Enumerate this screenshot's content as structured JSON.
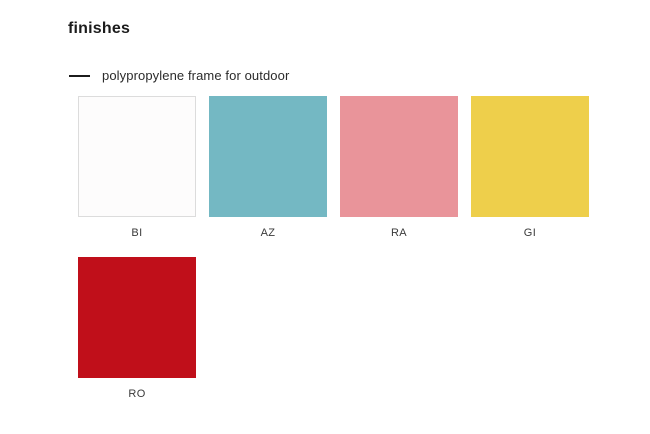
{
  "page": {
    "title": "finishes",
    "legend": {
      "label": "polypropylene frame for outdoor",
      "line_color": "#1c1c1c"
    },
    "swatches": [
      {
        "code": "BI",
        "color": "#fdfcfc",
        "border": "#dcdcdc"
      },
      {
        "code": "AZ",
        "color": "#74b8c3"
      },
      {
        "code": "RA",
        "color": "#e9949a"
      },
      {
        "code": "GI",
        "color": "#eecf4b"
      },
      {
        "code": "RO",
        "color": "#c00f1a"
      }
    ]
  }
}
